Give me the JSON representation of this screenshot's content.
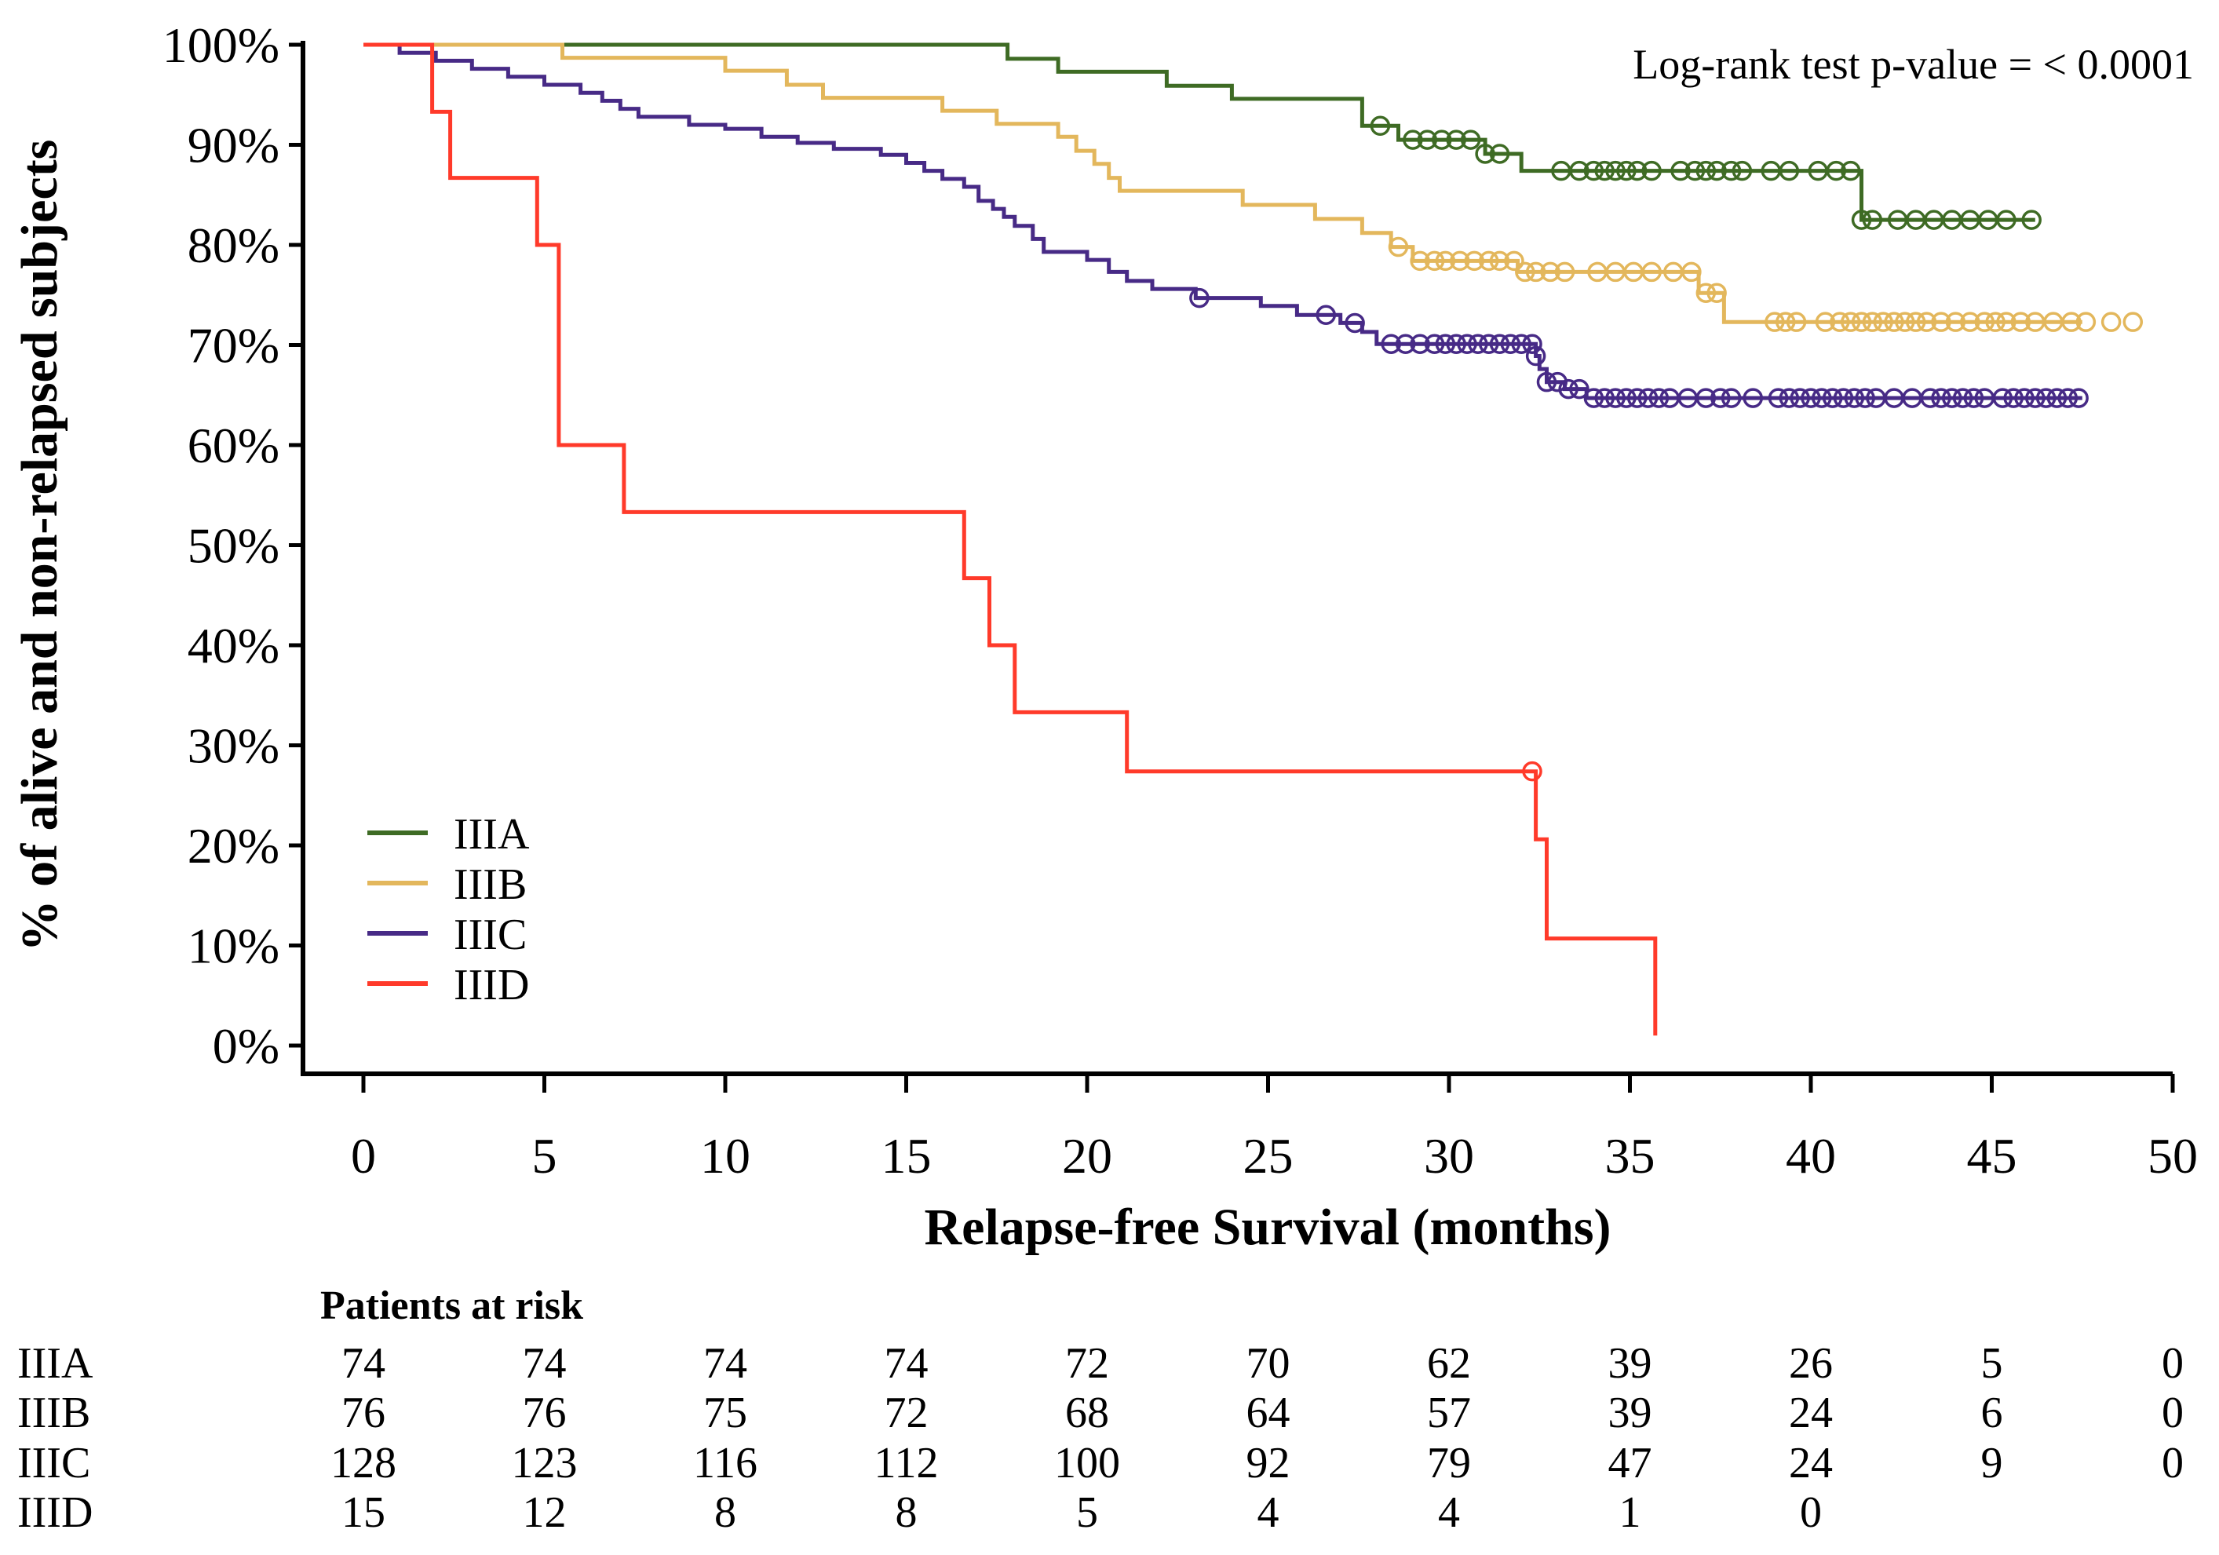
{
  "chart_data": {
    "type": "line",
    "subtype": "kaplan-meier",
    "title": "",
    "xlabel": "Relapse-free Survival (months)",
    "ylabel": "% of alive and non-relapsed subjects",
    "xlim": [
      0,
      50
    ],
    "ylim": [
      0,
      100
    ],
    "x_ticks": [
      "0",
      "5",
      "10",
      "15",
      "20",
      "25",
      "30",
      "35",
      "40",
      "45",
      "50"
    ],
    "x_tick_values": [
      0,
      5,
      10,
      15,
      20,
      25,
      30,
      35,
      40,
      45,
      50
    ],
    "y_ticks": [
      "0%",
      "10%",
      "20%",
      "30%",
      "40%",
      "50%",
      "60%",
      "70%",
      "80%",
      "90%",
      "100%"
    ],
    "y_tick_values": [
      0,
      10,
      20,
      30,
      40,
      50,
      60,
      70,
      80,
      90,
      100
    ],
    "annotation": "Log-rank test p-value = < 0.0001",
    "legend_position": "bottom-left",
    "series": [
      {
        "name": "IIIA",
        "color": "#3e6b24",
        "steps": [
          [
            0,
            100
          ],
          [
            17.8,
            98.6
          ],
          [
            19.2,
            97.3
          ],
          [
            22.2,
            95.9
          ],
          [
            24,
            94.6
          ],
          [
            27.6,
            91.9
          ],
          [
            28.6,
            90.5
          ],
          [
            31,
            89.1
          ],
          [
            32,
            87.4
          ],
          [
            41.4,
            82.5
          ],
          [
            46.2,
            82.5
          ]
        ],
        "censored": [
          28.1,
          29,
          29.4,
          29.8,
          30.2,
          30.6,
          31,
          31.4,
          33.1,
          33.6,
          34,
          34.3,
          34.6,
          34.9,
          35.2,
          35.6,
          36.4,
          36.8,
          37.1,
          37.4,
          37.8,
          38.1,
          38.9,
          39.4,
          40.2,
          40.7,
          41.1,
          41.4,
          41.7,
          42.4,
          42.9,
          43.4,
          43.9,
          44.4,
          44.9,
          45.4,
          46.1
        ]
      },
      {
        "name": "IIIB",
        "color": "#e3b75c",
        "steps": [
          [
            0,
            100
          ],
          [
            5.5,
            98.7
          ],
          [
            10,
            97.4
          ],
          [
            11.7,
            96
          ],
          [
            12.7,
            94.7
          ],
          [
            16,
            93.4
          ],
          [
            17.5,
            92.1
          ],
          [
            19.2,
            90.8
          ],
          [
            19.7,
            89.4
          ],
          [
            20.2,
            88.1
          ],
          [
            20.6,
            86.7
          ],
          [
            20.9,
            85.4
          ],
          [
            24.3,
            84
          ],
          [
            26.3,
            82.6
          ],
          [
            27.6,
            81.2
          ],
          [
            28.4,
            79.8
          ],
          [
            29,
            78.4
          ],
          [
            31.9,
            77.3
          ],
          [
            36.9,
            75.2
          ],
          [
            37.6,
            72.3
          ],
          [
            47.5,
            72.3
          ]
        ],
        "censored": [
          28.6,
          29.2,
          29.6,
          29.9,
          30.3,
          30.7,
          31.1,
          31.4,
          31.8,
          32.1,
          32.4,
          32.8,
          33.2,
          34.1,
          34.6,
          35.1,
          35.6,
          36.2,
          36.7,
          37.1,
          37.4,
          39,
          39.3,
          39.6,
          40.4,
          40.8,
          41.1,
          41.4,
          41.7,
          42,
          42.3,
          42.6,
          42.9,
          43.2,
          43.6,
          44,
          44.4,
          44.8,
          45.1,
          45.4,
          45.8,
          46.2,
          46.7,
          47.2,
          47.6,
          48.3,
          48.9
        ]
      },
      {
        "name": "IIIC",
        "color": "#472a86",
        "steps": [
          [
            0,
            100
          ],
          [
            1,
            99.2
          ],
          [
            2,
            98.4
          ],
          [
            3,
            97.6
          ],
          [
            4,
            96.8
          ],
          [
            5,
            96
          ],
          [
            6,
            95.2
          ],
          [
            6.6,
            94.4
          ],
          [
            7.1,
            93.6
          ],
          [
            7.6,
            92.8
          ],
          [
            9,
            92
          ],
          [
            10,
            91.6
          ],
          [
            11,
            90.8
          ],
          [
            12,
            90.2
          ],
          [
            13,
            89.6
          ],
          [
            14.3,
            89
          ],
          [
            15,
            88.2
          ],
          [
            15.5,
            87.4
          ],
          [
            16,
            86.6
          ],
          [
            16.6,
            85.8
          ],
          [
            17,
            84.4
          ],
          [
            17.4,
            83.6
          ],
          [
            17.7,
            82.8
          ],
          [
            18,
            81.9
          ],
          [
            18.5,
            80.6
          ],
          [
            18.8,
            79.3
          ],
          [
            20,
            78.5
          ],
          [
            20.6,
            77.3
          ],
          [
            21.1,
            76.4
          ],
          [
            21.8,
            75.6
          ],
          [
            23,
            74.7
          ],
          [
            24.8,
            73.9
          ],
          [
            25.8,
            73
          ],
          [
            27,
            72.2
          ],
          [
            27.6,
            71.3
          ],
          [
            28,
            70.1
          ],
          [
            32.4,
            68.9
          ],
          [
            32.5,
            67.6
          ],
          [
            32.7,
            66.3
          ],
          [
            33.2,
            65.6
          ],
          [
            33.8,
            64.7
          ],
          [
            47.5,
            64.7
          ]
        ],
        "censored": [
          23.1,
          26.6,
          27.4,
          28.4,
          28.8,
          29.2,
          29.6,
          29.9,
          30.2,
          30.5,
          30.8,
          31.1,
          31.4,
          31.7,
          32,
          32.3,
          32.4,
          32.7,
          33,
          33.3,
          33.6,
          34,
          34.3,
          34.6,
          34.9,
          35.2,
          35.5,
          35.8,
          36.1,
          36.6,
          37.1,
          37.5,
          37.8,
          38.4,
          39.1,
          39.4,
          39.7,
          40,
          40.3,
          40.6,
          40.9,
          41.2,
          41.5,
          41.8,
          42.3,
          42.8,
          43.3,
          43.6,
          43.9,
          44.2,
          44.5,
          44.8,
          45.3,
          45.6,
          45.9,
          46.2,
          46.5,
          46.8,
          47.1,
          47.4
        ]
      },
      {
        "name": "IIID",
        "color": "#ff3a2a",
        "steps": [
          [
            0,
            100
          ],
          [
            1.9,
            100
          ],
          [
            1.9,
            93.3
          ],
          [
            2.4,
            86.7
          ],
          [
            4.8,
            80
          ],
          [
            5.4,
            60
          ],
          [
            7.2,
            53.3
          ],
          [
            16.6,
            46.7
          ],
          [
            17.3,
            40
          ],
          [
            18,
            33.3
          ],
          [
            21.1,
            27.4
          ],
          [
            32.4,
            20.6
          ],
          [
            32.7,
            10.7
          ],
          [
            35.7,
            1
          ]
        ],
        "censored": [
          32.3
        ]
      }
    ],
    "risk_table": {
      "title": "Patients at risk",
      "times": [
        "0",
        "5",
        "10",
        "15",
        "20",
        "25",
        "30",
        "35",
        "40",
        "45",
        "50"
      ],
      "rows": [
        {
          "group": "IIIA",
          "counts": [
            "74",
            "74",
            "74",
            "74",
            "72",
            "70",
            "62",
            "39",
            "26",
            "5",
            "0"
          ]
        },
        {
          "group": "IIIB",
          "counts": [
            "76",
            "76",
            "75",
            "72",
            "68",
            "64",
            "57",
            "39",
            "24",
            "6",
            "0"
          ]
        },
        {
          "group": "IIIC",
          "counts": [
            "128",
            "123",
            "116",
            "112",
            "100",
            "92",
            "79",
            "47",
            "24",
            "9",
            "0"
          ]
        },
        {
          "group": "IIID",
          "counts": [
            "15",
            "12",
            "8",
            "8",
            "5",
            "4",
            "4",
            "1",
            "0",
            "",
            ""
          ]
        }
      ]
    }
  }
}
